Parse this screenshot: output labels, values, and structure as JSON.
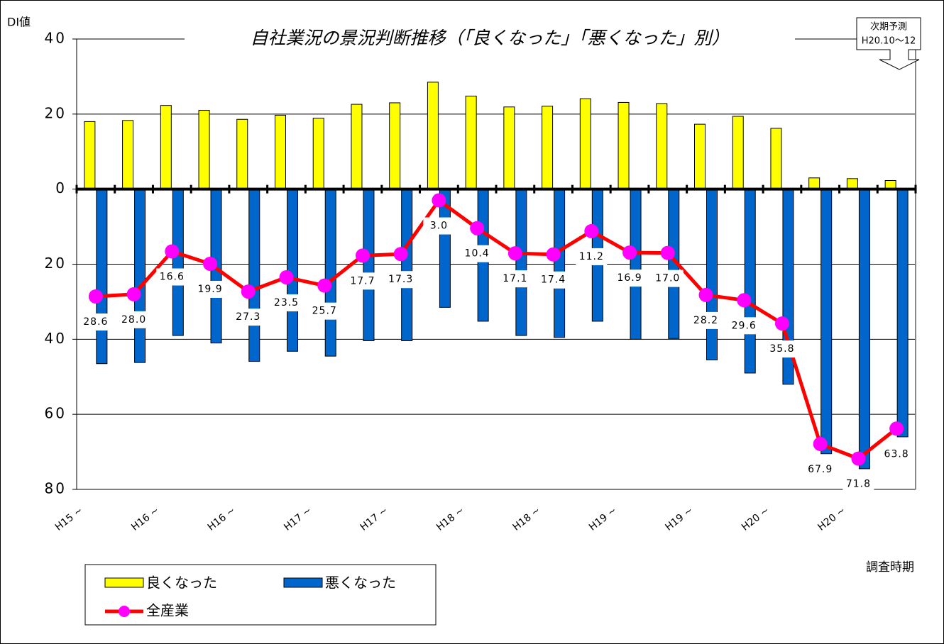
{
  "chart_data": {
    "type": "bar_line",
    "title": "自社業況の景況判断推移（「良くなった」「悪くなった」別）",
    "y_label": "DI値",
    "x_label": "調査時期",
    "annotations": [
      "次期予測",
      "H20.10～12"
    ],
    "categories": [
      "H15 ~",
      null,
      "H16 ~",
      null,
      "H16 ~",
      null,
      "H17 ~",
      null,
      "H17 ~",
      null,
      "H18 ~",
      null,
      "H18 ~",
      null,
      "H19 ~",
      null,
      "H19 ~",
      null,
      "H20 ~",
      null,
      "H20 ~",
      null
    ],
    "ylim": [
      -80,
      40
    ],
    "yticks": [
      {
        "value": -80,
        "label": "80"
      },
      {
        "value": -60,
        "label": "60"
      },
      {
        "value": -40,
        "label": "40"
      },
      {
        "value": -20,
        "label": "20"
      },
      0,
      20,
      40
    ],
    "grid": true,
    "series": [
      {
        "name": "良くなった",
        "type": "bar",
        "color": "#ffff00",
        "values": [
          18,
          18.3,
          22.3,
          21,
          18.6,
          19.7,
          18.9,
          22.6,
          23,
          28.5,
          24.8,
          21.9,
          22.1,
          24.1,
          23.1,
          22.8,
          17.3,
          19.4,
          16.2,
          3,
          2.8,
          2.3
        ]
      },
      {
        "name": "悪くなった",
        "type": "bar",
        "color": "#0066cc",
        "values": [
          -46.5,
          -46.2,
          -39,
          -41,
          -45.9,
          -43.2,
          -44.5,
          -40.4,
          -40.4,
          -31.5,
          -35.2,
          -39,
          -39.5,
          -35.2,
          -40,
          -39.8,
          -45.5,
          -49,
          -52,
          -70.5,
          -74.5,
          -66
        ]
      },
      {
        "name": "全産業",
        "type": "line",
        "color": "#ff0000",
        "marker_color": "#ff00ff",
        "values": [
          -28.6,
          -28.0,
          -16.6,
          -19.9,
          -27.3,
          -23.5,
          -25.7,
          -17.7,
          -17.3,
          -3.0,
          -10.4,
          -17.1,
          -17.4,
          -11.2,
          -16.9,
          -17.0,
          -28.2,
          -29.6,
          -35.8,
          -67.9,
          -71.8,
          -63.8
        ],
        "value_labels": [
          "28.6",
          "28.0",
          "16.6",
          "19.9",
          "27.3",
          "23.5",
          "25.7",
          "17.7",
          "17.3",
          "3.0",
          "10.4",
          "17.1",
          "17.4",
          "11.2",
          "16.9",
          "17.0",
          "28.2",
          "29.6",
          "35.8",
          "67.9",
          "71.8",
          "63.8"
        ]
      }
    ]
  }
}
